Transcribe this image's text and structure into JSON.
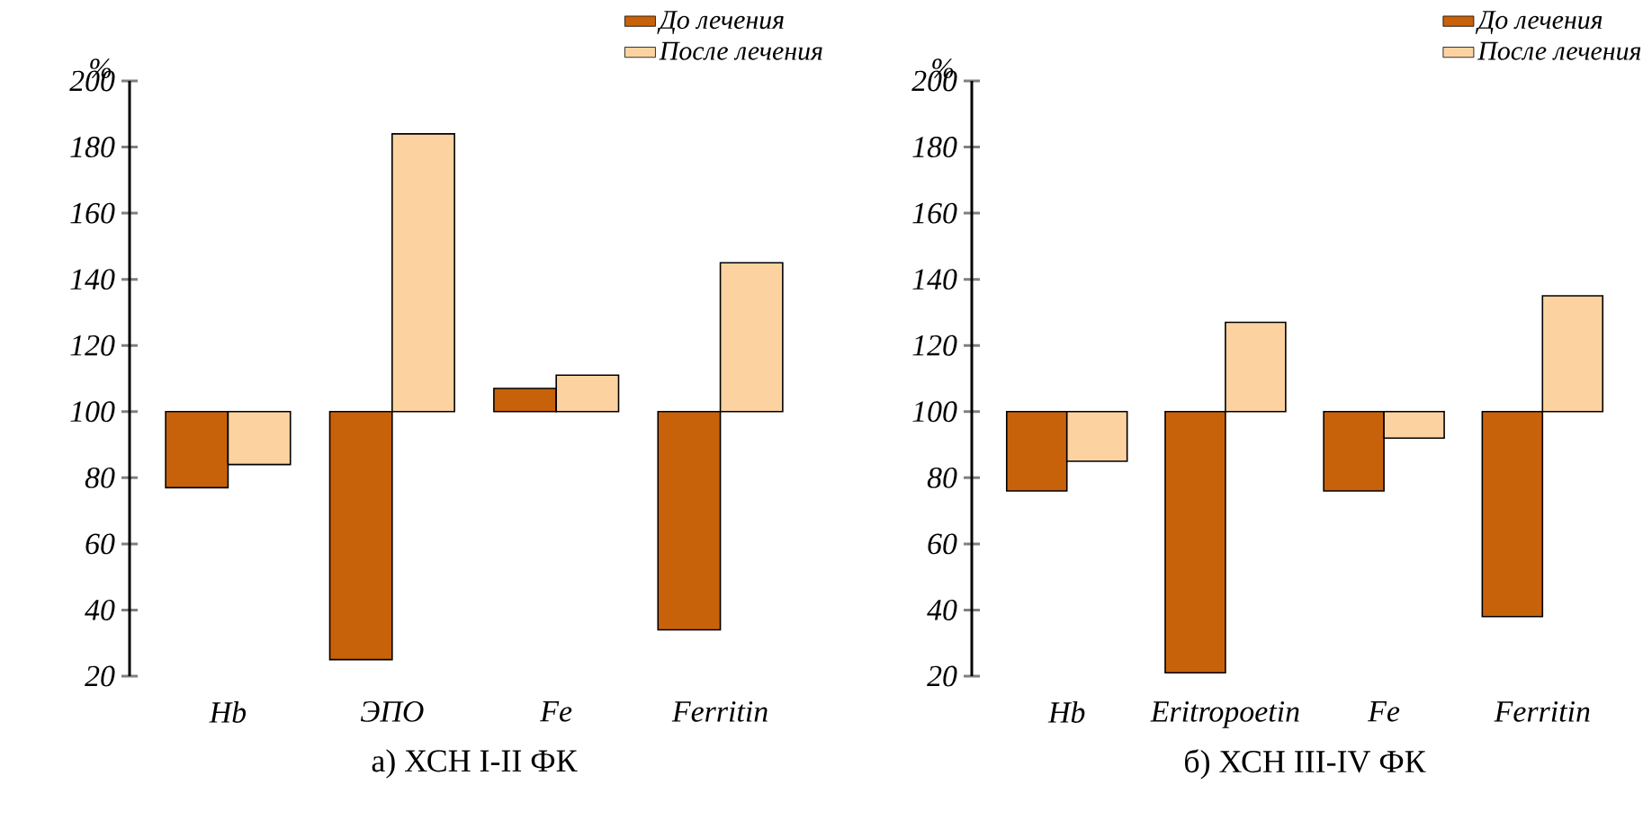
{
  "chart_data": [
    {
      "type": "bar",
      "title": "а) ХСН I-II ФК",
      "ylabel": "%",
      "categories": [
        "Hb",
        "ЭПО",
        "Fe",
        "Ferritin"
      ],
      "series": [
        {
          "name": "До лечения",
          "color": "#c8620a",
          "base": [
            77,
            25,
            100,
            34
          ],
          "values": [
            23,
            75,
            7,
            66
          ]
        },
        {
          "name": "После лечения",
          "color": "#fcd3a0",
          "base": [
            84,
            100,
            100,
            100
          ],
          "values": [
            16,
            84,
            11,
            45
          ]
        }
      ],
      "ylim": [
        20,
        200
      ],
      "yticks": [
        20,
        40,
        60,
        80,
        100,
        120,
        140,
        160,
        180,
        200
      ],
      "legend": "top right",
      "grid": false
    },
    {
      "type": "bar",
      "title": "б) ХСН III-IV ФК",
      "ylabel": "%",
      "categories": [
        "Hb",
        "Eritropoetin",
        "Fe",
        "Ferritin"
      ],
      "series": [
        {
          "name": "До лечения",
          "color": "#c8620a",
          "base": [
            76,
            21,
            76,
            38
          ],
          "values": [
            24,
            79,
            24,
            62
          ]
        },
        {
          "name": "После лечения",
          "color": "#fcd3a0",
          "base": [
            85,
            100,
            92,
            100
          ],
          "values": [
            15,
            27,
            8,
            35
          ]
        }
      ],
      "ylim": [
        20,
        200
      ],
      "yticks": [
        20,
        40,
        60,
        80,
        100,
        120,
        140,
        160,
        180,
        200
      ],
      "legend": "top right",
      "grid": false
    }
  ]
}
